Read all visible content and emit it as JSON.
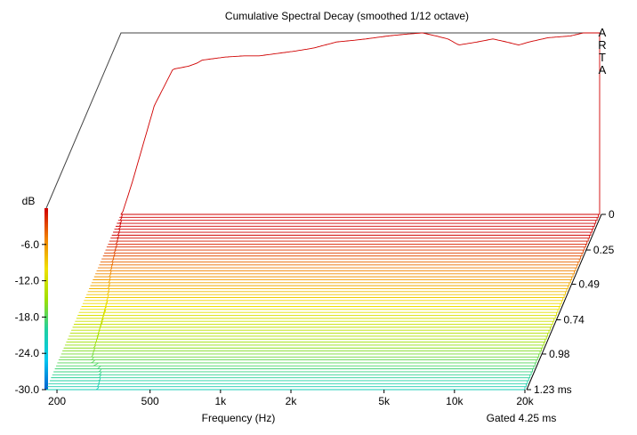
{
  "chart_data": {
    "type": "waterfall",
    "title": "Cumulative Spectral Decay (smoothed 1/12 octave)",
    "watermark": "ARTA",
    "xlabel": "Frequency (Hz)",
    "x_scale": "log",
    "xlim": [
      180,
      20000
    ],
    "x_ticks": [
      {
        "value": 200,
        "label": "200"
      },
      {
        "value": 500,
        "label": "500"
      },
      {
        "value": 1000,
        "label": "1k"
      },
      {
        "value": 2000,
        "label": "2k"
      },
      {
        "value": 5000,
        "label": "5k"
      },
      {
        "value": 10000,
        "label": "10k"
      },
      {
        "value": 20000,
        "label": "20k"
      }
    ],
    "zlabel": "dB",
    "zlim": [
      -30,
      0
    ],
    "z_ticks": [
      "-6.0",
      "-12.0",
      "-18.0",
      "-24.0",
      "-30.0"
    ],
    "time_ticks": [
      "0",
      "0.25",
      "0.49",
      "0.74",
      "0.98",
      "1.23 ms"
    ],
    "time_range_ms": [
      0,
      1.23
    ],
    "slices": 60,
    "gate_note": "Gated 4.25 ms",
    "colormap": [
      "#0060d0",
      "#00c8f0",
      "#20d0a0",
      "#a0e000",
      "#f0e000",
      "#f08000",
      "#d00000"
    ],
    "first_slice_response": {
      "freq": [
        200,
        250,
        300,
        350,
        380,
        400,
        500,
        600,
        700,
        800,
        1000,
        1200,
        1500,
        1800,
        2000,
        2500,
        3000,
        3500,
        4000,
        4500,
        5000,
        6000,
        7000,
        8000,
        9000,
        10000,
        12000,
        15000,
        18000,
        20000
      ],
      "db": [
        -25,
        -12,
        -6,
        -5.5,
        -5,
        -4.5,
        -4,
        -3.8,
        -3.8,
        -3.5,
        -3,
        -2.5,
        -1.5,
        -1.2,
        -1,
        -0.5,
        -0.2,
        0,
        -0.5,
        -1,
        -2,
        -1.5,
        -1,
        -1.5,
        -2,
        -1.5,
        -0.8,
        -0.5,
        0.2,
        0.5
      ]
    }
  }
}
